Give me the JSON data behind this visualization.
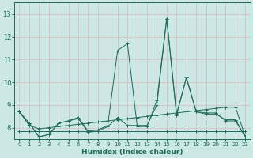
{
  "xlabel": "Humidex (Indice chaleur)",
  "bg_color": "#cce8e4",
  "grid_color": "#ddb8b8",
  "line_color": "#1a6b5a",
  "xlim": [
    -0.5,
    23.5
  ],
  "ylim": [
    7.5,
    13.5
  ],
  "yticks": [
    8,
    9,
    10,
    11,
    12,
    13
  ],
  "xticks": [
    0,
    1,
    2,
    3,
    4,
    5,
    6,
    7,
    8,
    9,
    10,
    11,
    12,
    13,
    14,
    15,
    16,
    17,
    18,
    19,
    20,
    21,
    22,
    23
  ],
  "series": [
    [
      8.7,
      8.2,
      7.6,
      7.7,
      8.2,
      8.3,
      8.4,
      7.8,
      7.85,
      8.05,
      8.45,
      8.1,
      8.1,
      8.1,
      9.0,
      12.8,
      8.55,
      10.2,
      8.7,
      8.6,
      8.6,
      8.35,
      8.35,
      7.6
    ],
    [
      8.7,
      8.2,
      7.6,
      7.7,
      8.2,
      8.3,
      8.45,
      7.85,
      7.9,
      8.1,
      11.4,
      11.7,
      8.05,
      8.05,
      9.2,
      12.8,
      8.6,
      10.2,
      8.7,
      8.65,
      8.65,
      8.3,
      8.3,
      7.6
    ],
    [
      7.85,
      7.85,
      7.85,
      7.85,
      7.85,
      7.85,
      7.85,
      7.85,
      7.85,
      7.85,
      7.85,
      7.85,
      7.85,
      7.85,
      7.85,
      7.85,
      7.85,
      7.85,
      7.85,
      7.85,
      7.85,
      7.85,
      7.85,
      7.85
    ],
    [
      8.7,
      8.1,
      7.95,
      8.0,
      8.05,
      8.1,
      8.15,
      8.2,
      8.25,
      8.3,
      8.35,
      8.4,
      8.45,
      8.5,
      8.55,
      8.6,
      8.65,
      8.7,
      8.75,
      8.8,
      8.85,
      8.9,
      8.9,
      7.6
    ]
  ]
}
